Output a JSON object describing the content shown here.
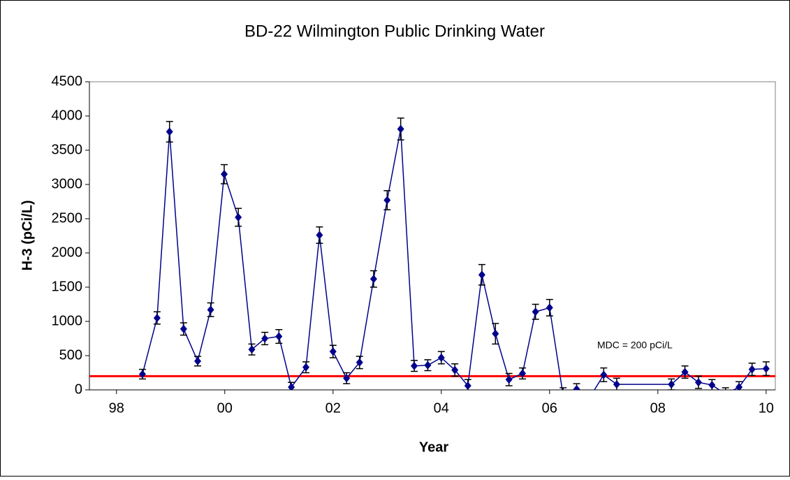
{
  "chart_data": {
    "type": "line",
    "title": "BD-22 Wilmington Public Drinking Water",
    "x_label": "Year",
    "y_label": "H-3 (pCi/L)",
    "x": [
      1998.48,
      1998.75,
      1998.98,
      1999.24,
      1999.5,
      1999.74,
      1999.99,
      2000.25,
      2000.5,
      2000.74,
      2001.0,
      2001.23,
      2001.5,
      2001.75,
      2002.0,
      2002.25,
      2002.49,
      2002.75,
      2003.0,
      2003.25,
      2003.5,
      2003.75,
      2004.0,
      2004.25,
      2004.49,
      2004.75,
      2005.0,
      2005.25,
      2005.5,
      2005.74,
      2006.0,
      2006.25,
      2006.5,
      2006.75,
      2007.0,
      2007.24,
      2008.25,
      2008.5,
      2008.75,
      2009.0,
      2009.25,
      2009.5,
      2009.74,
      2010.0
    ],
    "series": [
      {
        "name": "H-3",
        "color": "#00008b",
        "values": [
          230,
          1050,
          3770,
          890,
          420,
          1170,
          3150,
          2520,
          590,
          750,
          780,
          40,
          330,
          2260,
          560,
          170,
          400,
          1620,
          2770,
          3810,
          350,
          360,
          470,
          290,
          60,
          1680,
          820,
          150,
          240,
          1140,
          1200,
          -80,
          10,
          -100,
          220,
          80,
          80,
          260,
          110,
          70,
          -60,
          40,
          300,
          310
        ],
        "errors": [
          70,
          90,
          150,
          90,
          70,
          100,
          140,
          130,
          80,
          90,
          100,
          70,
          80,
          120,
          90,
          80,
          90,
          120,
          140,
          160,
          80,
          80,
          90,
          90,
          90,
          150,
          150,
          90,
          80,
          110,
          120,
          110,
          80,
          90,
          100,
          90,
          80,
          90,
          90,
          80,
          90,
          80,
          90,
          100
        ]
      }
    ],
    "threshold": {
      "value": 200,
      "label": "MDC = 200 pCi/L",
      "color": "#ff0000"
    },
    "xlim": [
      1997.5,
      2010.17
    ],
    "xticks": [
      {
        "value": 1998,
        "label": "98"
      },
      {
        "value": 2000,
        "label": "00"
      },
      {
        "value": 2002,
        "label": "02"
      },
      {
        "value": 2004,
        "label": "04"
      },
      {
        "value": 2006,
        "label": "06"
      },
      {
        "value": 2008,
        "label": "08"
      },
      {
        "value": 2010,
        "label": "10"
      }
    ],
    "ylim": [
      0,
      4500
    ],
    "yticks": [
      0,
      500,
      1000,
      1500,
      2000,
      2500,
      3000,
      3500,
      4000,
      4500
    ]
  }
}
